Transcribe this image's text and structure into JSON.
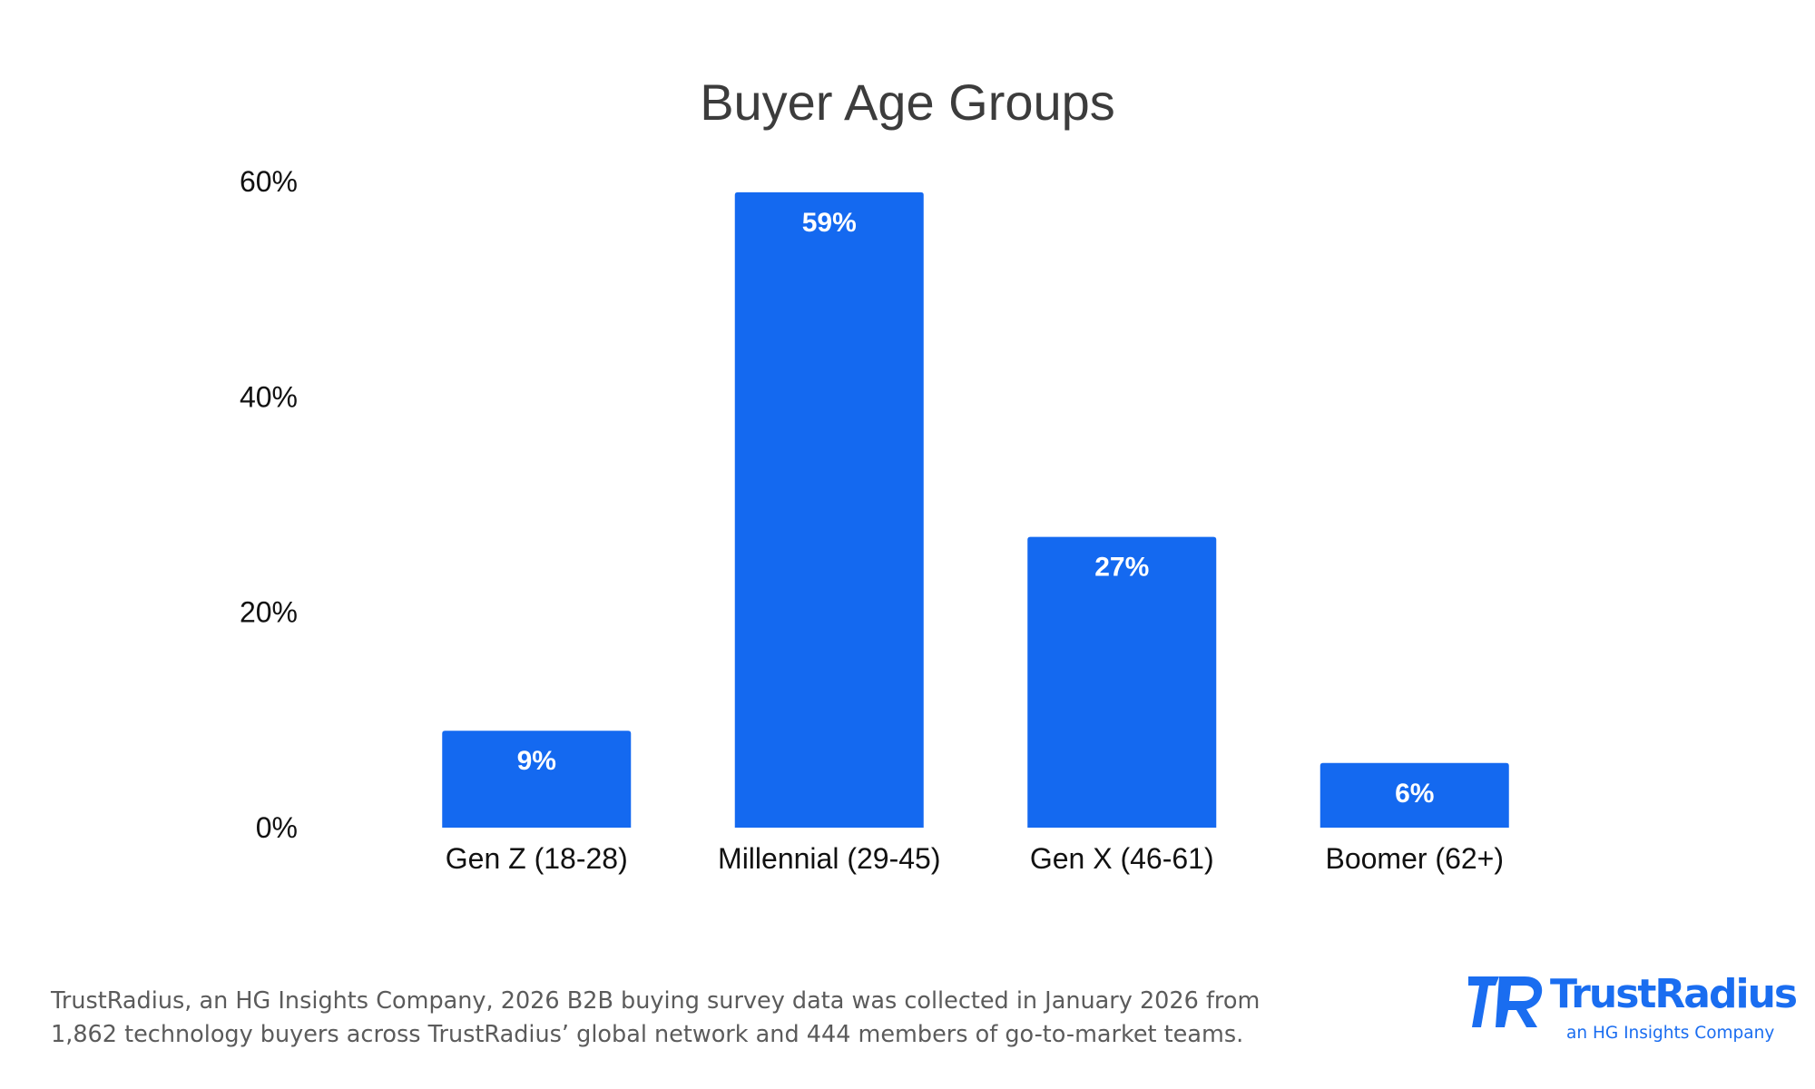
{
  "chart_data": {
    "type": "bar",
    "title": "Buyer Age Groups",
    "categories": [
      "Gen Z (18-28)",
      "Millennial (29-45)",
      "Gen X (46-61)",
      "Boomer (62+)"
    ],
    "values": [
      9,
      59,
      27,
      6
    ],
    "data_labels": [
      "9%",
      "59%",
      "27%",
      "6%"
    ],
    "y_ticks": [
      0,
      20,
      40,
      60
    ],
    "y_tick_labels": [
      "0%",
      "20%",
      "40%",
      "60%"
    ],
    "ylim": [
      0,
      60
    ],
    "xlabel": "",
    "ylabel": "",
    "grid": false,
    "legend": "none",
    "bar_color": "#1469f0"
  },
  "footnote": {
    "line1": "TrustRadius, an HG Insights Company, 2026 B2B buying survey data was collected in January 2026 from",
    "line2": "1,862 technology buyers across TrustRadius’ global network and 444 members of go-to-market teams."
  },
  "brand": {
    "name": "TrustRadius",
    "tagline": "an HG Insights Company",
    "color": "#1a6df0"
  }
}
